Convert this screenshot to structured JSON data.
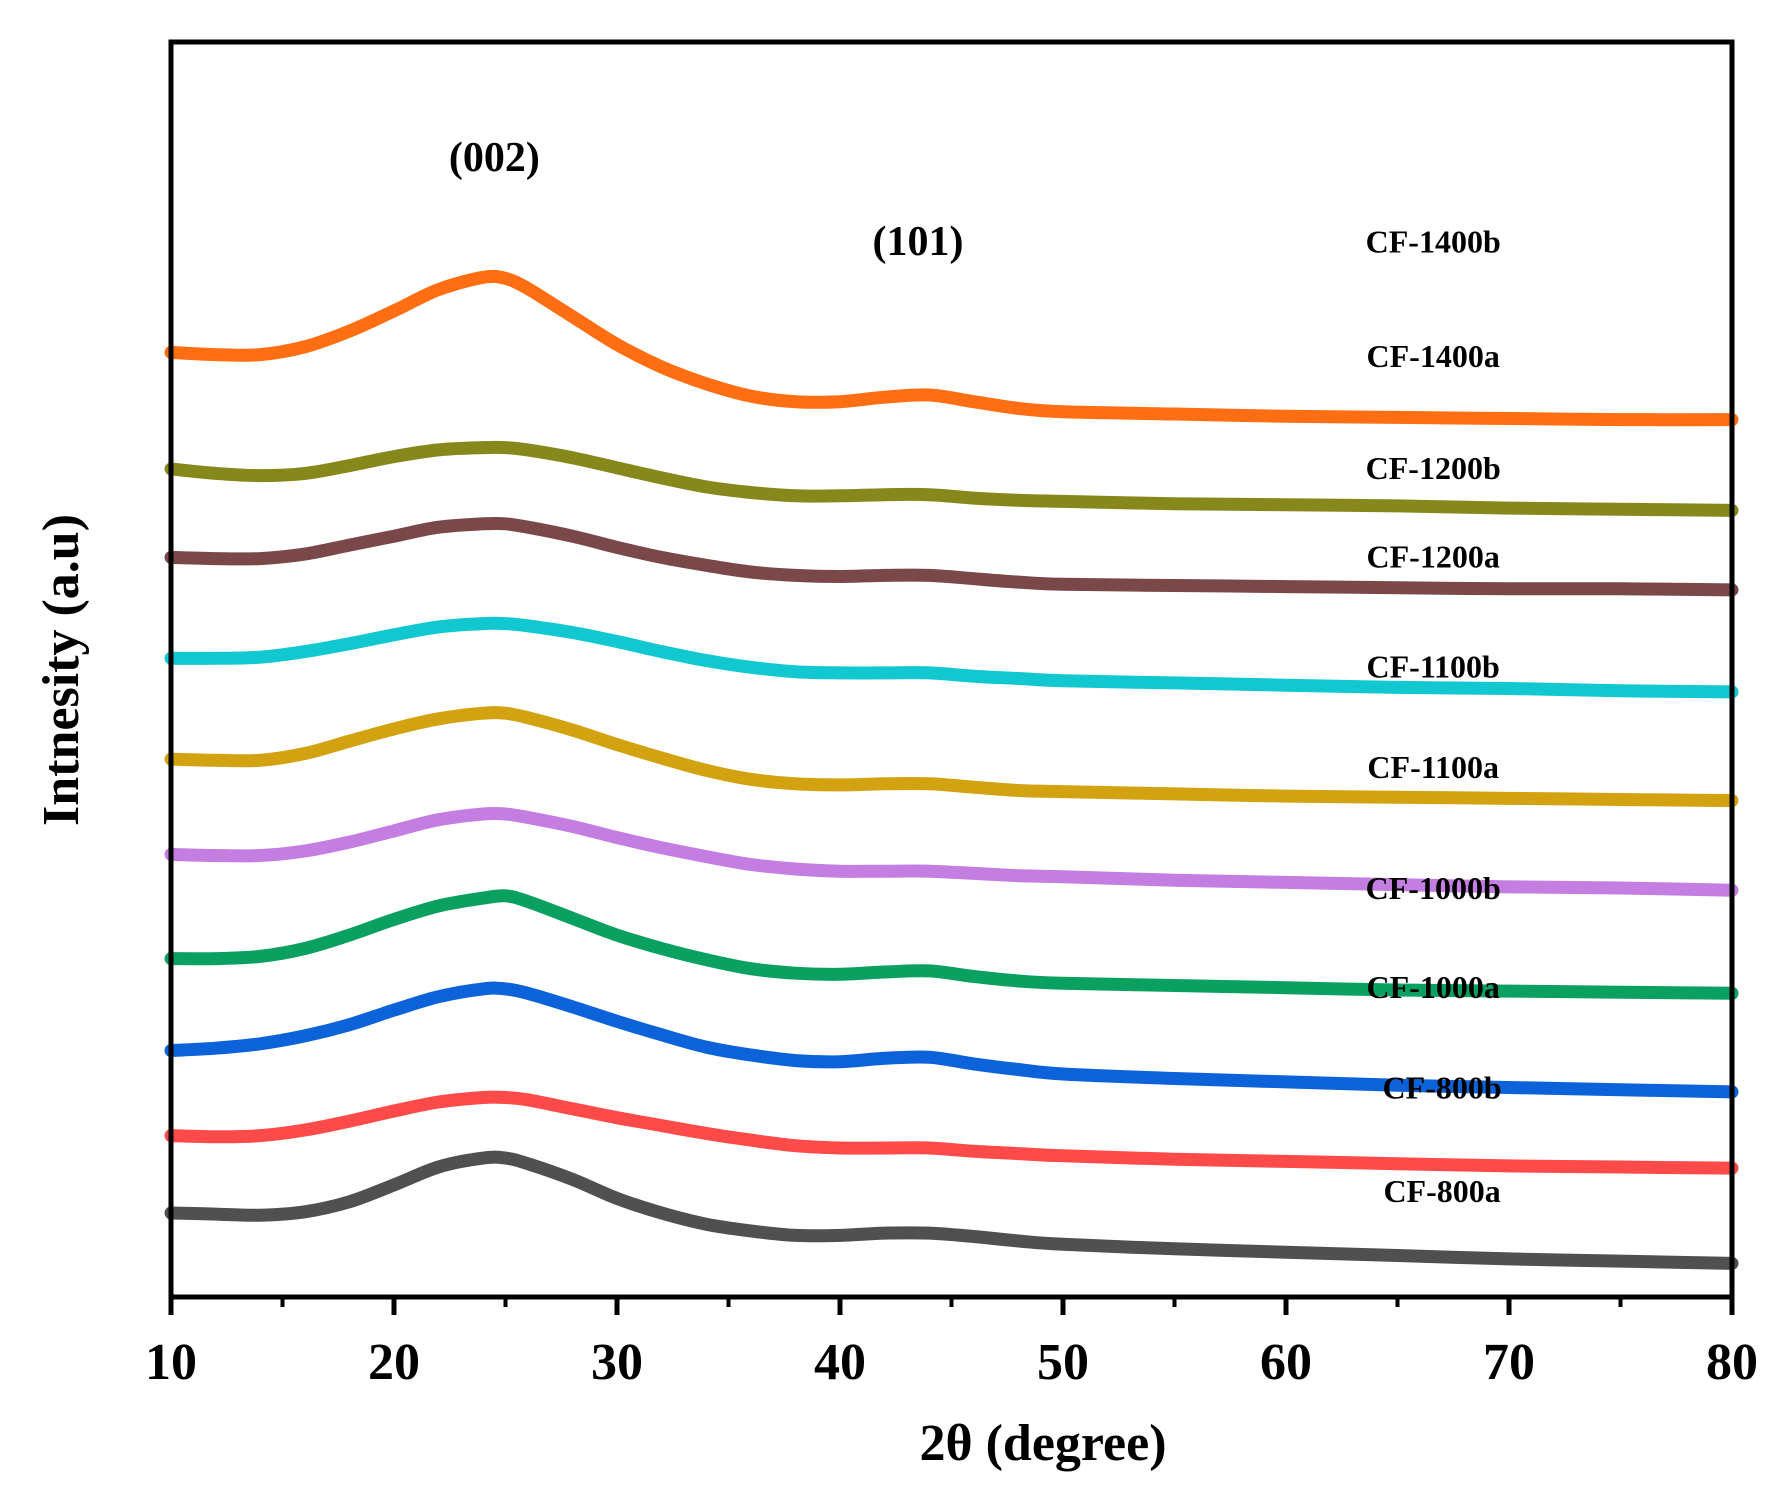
{
  "chart_data": {
    "type": "line",
    "title": "",
    "xlabel": "2θ (degree)",
    "ylabel": "Intnesity (a.u)",
    "xlim": [
      10,
      80
    ],
    "ylim": [
      -0.2,
      11.0
    ],
    "x_ticks": [
      10,
      20,
      30,
      40,
      50,
      60,
      70,
      80
    ],
    "x_tick_labels": [
      "10",
      "20",
      "30",
      "40",
      "50",
      "60",
      "70",
      "80"
    ],
    "x_minor_ticks": [
      15,
      25,
      35,
      45,
      55,
      65,
      75
    ],
    "y_axis_ticks_shown": false,
    "grid": false,
    "annotations": [
      {
        "text": "(002)",
        "x": 24.5,
        "y": 9.85
      },
      {
        "text": "(101)",
        "x": 43.5,
        "y": 9.1
      }
    ],
    "x": [
      10,
      12,
      14,
      16,
      18,
      20,
      22,
      24,
      25,
      26,
      28,
      30,
      32,
      34,
      36,
      38,
      40,
      42,
      44,
      46,
      48,
      50,
      55,
      60,
      65,
      70,
      75,
      80
    ],
    "series": [
      {
        "name": "CF-800a",
        "color": "#505050",
        "values": [
          0.55,
          0.54,
          0.53,
          0.56,
          0.65,
          0.8,
          0.96,
          1.04,
          1.04,
          0.99,
          0.85,
          0.68,
          0.55,
          0.45,
          0.39,
          0.35,
          0.35,
          0.37,
          0.37,
          0.34,
          0.3,
          0.27,
          0.23,
          0.2,
          0.17,
          0.14,
          0.12,
          0.1
        ]
      },
      {
        "name": "CF-800b",
        "color": "#ff4a4a",
        "values": [
          1.24,
          1.23,
          1.24,
          1.29,
          1.37,
          1.46,
          1.54,
          1.58,
          1.58,
          1.56,
          1.48,
          1.4,
          1.33,
          1.26,
          1.2,
          1.15,
          1.13,
          1.13,
          1.13,
          1.1,
          1.08,
          1.06,
          1.03,
          1.01,
          0.99,
          0.97,
          0.96,
          0.95
        ]
      },
      {
        "name": "CF-1000a",
        "color": "#0b62d9",
        "values": [
          2.0,
          2.02,
          2.06,
          2.13,
          2.23,
          2.36,
          2.48,
          2.55,
          2.55,
          2.51,
          2.39,
          2.26,
          2.14,
          2.03,
          1.96,
          1.91,
          1.9,
          1.93,
          1.94,
          1.88,
          1.83,
          1.79,
          1.75,
          1.72,
          1.69,
          1.67,
          1.65,
          1.63
        ]
      },
      {
        "name": "CF-1000b",
        "color": "#0aa060",
        "values": [
          2.82,
          2.82,
          2.84,
          2.91,
          3.03,
          3.17,
          3.29,
          3.36,
          3.38,
          3.33,
          3.18,
          3.03,
          2.91,
          2.81,
          2.73,
          2.69,
          2.68,
          2.7,
          2.71,
          2.66,
          2.62,
          2.6,
          2.58,
          2.56,
          2.54,
          2.53,
          2.52,
          2.51
        ]
      },
      {
        "name": "CF-1100a",
        "color": "#c47de0",
        "values": [
          3.75,
          3.74,
          3.74,
          3.78,
          3.86,
          3.96,
          4.06,
          4.11,
          4.11,
          4.08,
          4.0,
          3.9,
          3.81,
          3.73,
          3.66,
          3.62,
          3.6,
          3.6,
          3.6,
          3.58,
          3.56,
          3.55,
          3.52,
          3.5,
          3.48,
          3.46,
          3.45,
          3.43
        ]
      },
      {
        "name": "CF-1100b",
        "color": "#d2a210",
        "values": [
          4.6,
          4.59,
          4.59,
          4.65,
          4.76,
          4.87,
          4.96,
          5.01,
          5.01,
          4.97,
          4.86,
          4.73,
          4.61,
          4.5,
          4.42,
          4.38,
          4.37,
          4.38,
          4.38,
          4.35,
          4.32,
          4.31,
          4.29,
          4.27,
          4.26,
          4.25,
          4.24,
          4.23
        ]
      },
      {
        "name": "CF-1200a",
        "color": "#12c8d0",
        "values": [
          5.5,
          5.5,
          5.51,
          5.56,
          5.63,
          5.71,
          5.78,
          5.81,
          5.81,
          5.79,
          5.73,
          5.65,
          5.56,
          5.48,
          5.42,
          5.38,
          5.37,
          5.37,
          5.37,
          5.34,
          5.32,
          5.3,
          5.28,
          5.26,
          5.24,
          5.23,
          5.21,
          5.2
        ]
      },
      {
        "name": "CF-1200b",
        "color": "#7a4848",
        "values": [
          6.4,
          6.39,
          6.39,
          6.43,
          6.51,
          6.59,
          6.67,
          6.7,
          6.7,
          6.67,
          6.59,
          6.49,
          6.4,
          6.33,
          6.27,
          6.24,
          6.23,
          6.24,
          6.24,
          6.21,
          6.18,
          6.16,
          6.15,
          6.14,
          6.13,
          6.12,
          6.12,
          6.11
        ]
      },
      {
        "name": "CF-1400a",
        "color": "#86881c",
        "values": [
          7.19,
          7.15,
          7.13,
          7.15,
          7.22,
          7.3,
          7.36,
          7.38,
          7.38,
          7.36,
          7.29,
          7.2,
          7.11,
          7.03,
          6.98,
          6.95,
          6.95,
          6.96,
          6.96,
          6.93,
          6.91,
          6.9,
          6.88,
          6.87,
          6.86,
          6.84,
          6.83,
          6.82
        ]
      },
      {
        "name": "CF-1400b",
        "color": "#ff6e12",
        "values": [
          8.23,
          8.21,
          8.21,
          8.28,
          8.42,
          8.6,
          8.79,
          8.9,
          8.89,
          8.8,
          8.55,
          8.3,
          8.1,
          7.95,
          7.84,
          7.79,
          7.79,
          7.83,
          7.85,
          7.79,
          7.73,
          7.7,
          7.68,
          7.66,
          7.65,
          7.64,
          7.63,
          7.63
        ]
      }
    ],
    "label_positions": [
      {
        "name": "CF-800a",
        "x": 67.0,
        "y": 0.65
      },
      {
        "name": "CF-800b",
        "x": 67.0,
        "y": 1.57
      },
      {
        "name": "CF-1000a",
        "x": 66.6,
        "y": 2.47
      },
      {
        "name": "CF-1000b",
        "x": 66.6,
        "y": 3.35
      },
      {
        "name": "CF-1100a",
        "x": 66.6,
        "y": 4.43
      },
      {
        "name": "CF-1100b",
        "x": 66.6,
        "y": 5.33
      },
      {
        "name": "CF-1200a",
        "x": 66.6,
        "y": 6.31
      },
      {
        "name": "CF-1200b",
        "x": 66.6,
        "y": 7.1
      },
      {
        "name": "CF-1400a",
        "x": 66.6,
        "y": 8.1
      },
      {
        "name": "CF-1400b",
        "x": 66.6,
        "y": 9.12
      }
    ]
  }
}
